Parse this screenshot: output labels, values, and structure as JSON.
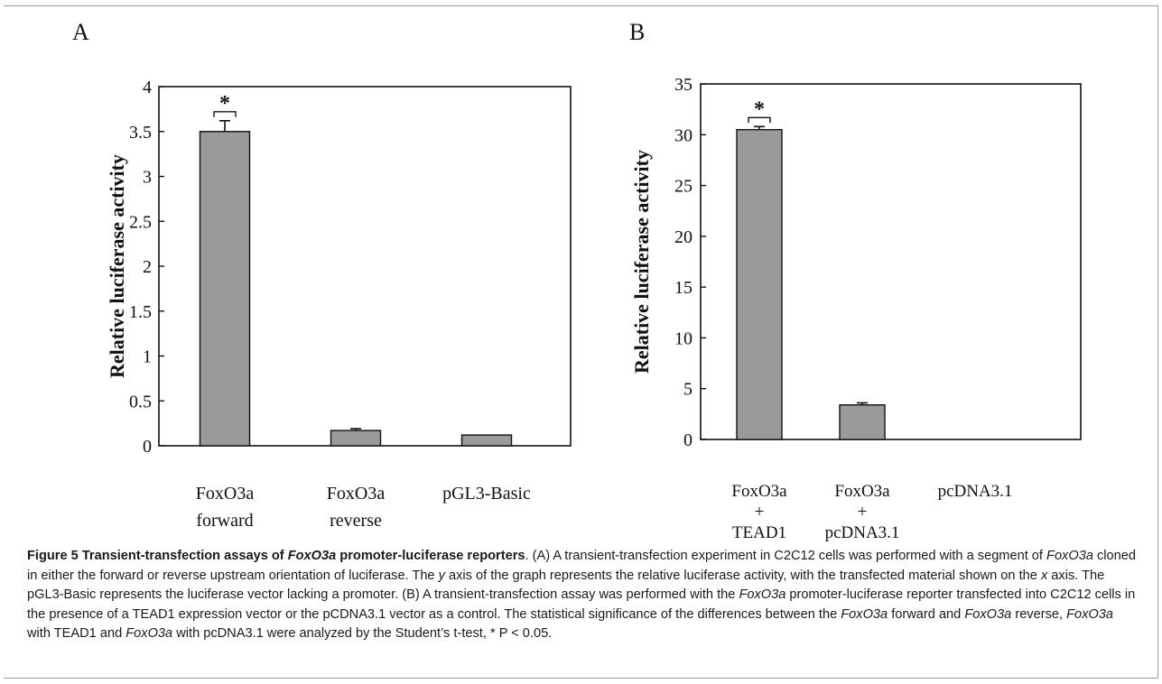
{
  "chart_data": [
    {
      "type": "bar",
      "panel_label": "A",
      "categories": [
        "FoxO3a\nforward",
        "FoxO3a\nreverse",
        "pGL3-Basic"
      ],
      "values": [
        3.5,
        0.17,
        0.12
      ],
      "errors": [
        0.12,
        0.02,
        0.0
      ],
      "ylabel": "Relative luciferase activity",
      "ylim": [
        0,
        4
      ],
      "yticks": [
        "0",
        "0.5",
        "1",
        "1.5",
        "2",
        "2.5",
        "3",
        "3.5",
        "4"
      ],
      "ytick_values": [
        0,
        0.5,
        1,
        1.5,
        2,
        2.5,
        3,
        3.5,
        4
      ],
      "annotations": [
        "*"
      ],
      "bar_color": "#9a9a9a",
      "grid": false
    },
    {
      "type": "bar",
      "panel_label": "B",
      "categories": [
        "FoxO3a\n+\nTEAD1",
        "FoxO3a\n+\npcDNA3.1",
        "pcDNA3.1"
      ],
      "values": [
        30.5,
        3.4,
        0
      ],
      "errors": [
        0.3,
        0.2,
        0
      ],
      "ylabel": "Relative luciferase activity",
      "ylim": [
        0,
        35
      ],
      "yticks": [
        "0",
        "5",
        "10",
        "15",
        "20",
        "25",
        "30",
        "35"
      ],
      "ytick_values": [
        0,
        5,
        10,
        15,
        20,
        25,
        30,
        35
      ],
      "annotations": [
        "*"
      ],
      "bar_color": "#9a9a9a",
      "grid": false
    }
  ],
  "caption": {
    "title_prefix": "Figure 5 Transient-transfection assays of ",
    "title_gene": "FoxO3a",
    "title_suffix": " promoter-luciferase reporters",
    "title_end": ".",
    "s1": " (A) A transient-transfection experiment in C2C12 cells was performed with a segment of ",
    "g1": "FoxO3a",
    "s2": " cloned in either the forward or reverse upstream orientation of luciferase. The ",
    "y_axis": "y",
    "s3": " axis of the graph represents the relative luciferase activity, with the transfected material shown on the ",
    "x_axis": "x",
    "s4": " axis. The pGL3-Basic represents the luciferase vector lacking a promoter. (B) A transient-transfection assay was performed with the ",
    "g2": "FoxO3a",
    "s5": " promoter-luciferase reporter transfected into C2C12 cells in the presence of a TEAD1 expression vector or the pCDNA3.1 vector as a control. The statistical significance of the differences between the ",
    "g3": "FoxO3a",
    "s6": " forward and ",
    "g4": "FoxO3a",
    "s7": " reverse, ",
    "g5": "FoxO3a",
    "s8": " with TEAD1 and ",
    "g6": "FoxO3a",
    "s9": " with pcDNA3.1 were analyzed by the Student’s t-test, * P < 0.05."
  }
}
